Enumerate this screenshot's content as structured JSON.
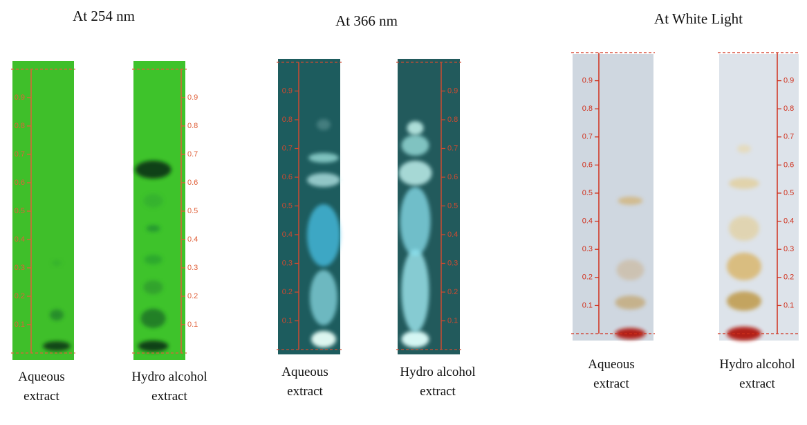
{
  "panels": [
    {
      "title": "At 254 nm",
      "plates": [
        {
          "label": [
            "Aqueous",
            "extract"
          ],
          "ticks": [
            "0.1",
            "0.2",
            "0.3",
            "0.4",
            "0.5",
            "0.6",
            "0.7",
            "0.8",
            "0.9"
          ]
        },
        {
          "label": [
            "Hydro alcohol",
            "extract"
          ],
          "ticks": [
            "0.1",
            "0.2",
            "0.3",
            "0.4",
            "0.5",
            "0.6",
            "0.7",
            "0.8",
            "0.9"
          ]
        }
      ]
    },
    {
      "title": "At 366 nm",
      "plates": [
        {
          "label": [
            "Aqueous",
            "extract"
          ],
          "ticks": [
            "0.1",
            "0.2",
            "0.3",
            "0.4",
            "0.5",
            "0.6",
            "0.7",
            "0.8",
            "0.9"
          ]
        },
        {
          "label": [
            "Hydro alcohol",
            "extract"
          ],
          "ticks": [
            "0.1",
            "0.2",
            "0.3",
            "0.4",
            "0.5",
            "0.6",
            "0.7",
            "0.8",
            "0.9"
          ]
        }
      ]
    },
    {
      "title": "At White Light",
      "plates": [
        {
          "label": [
            "Aqueous",
            "extract"
          ],
          "ticks": [
            "0.1",
            "0.2",
            "0.3",
            "0.4",
            "0.5",
            "0.6",
            "0.7",
            "0.8",
            "0.9"
          ]
        },
        {
          "label": [
            "Hydro alcohol",
            "extract"
          ],
          "ticks": [
            "0.1",
            "0.2",
            "0.3",
            "0.4",
            "0.5",
            "0.6",
            "0.7",
            "0.8",
            "0.9"
          ]
        }
      ]
    }
  ]
}
